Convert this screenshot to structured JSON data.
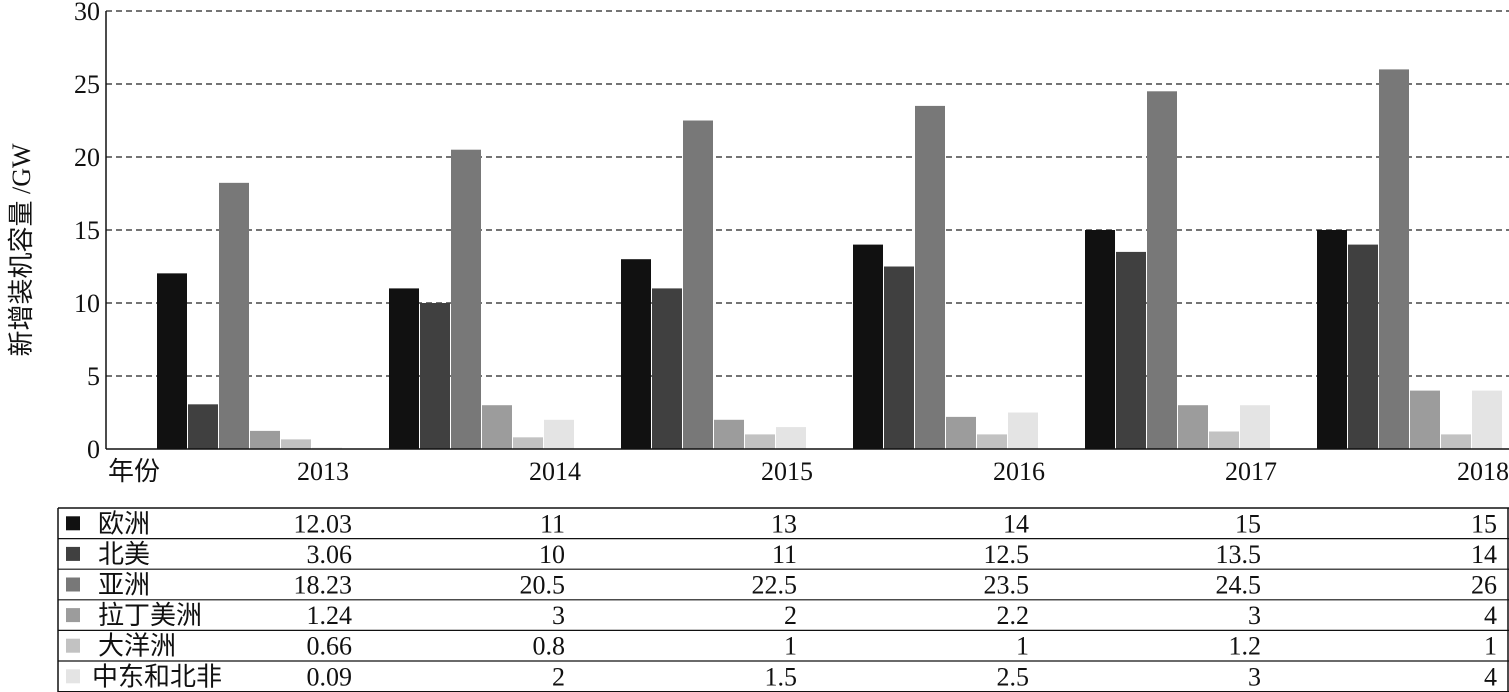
{
  "chart_data": {
    "type": "bar",
    "ylabel": "新增装机容量 /GW",
    "xlabel": "年份",
    "ylim": [
      0,
      30
    ],
    "yticks": [
      0,
      5,
      10,
      15,
      20,
      25,
      30
    ],
    "grid": true,
    "legend": "data-table-below",
    "categories": [
      "2013",
      "2014",
      "2015",
      "2016",
      "2017",
      "2018"
    ],
    "series": [
      {
        "name": "欧洲",
        "color": "#111111",
        "values": [
          12.03,
          11,
          13,
          14,
          15,
          15
        ],
        "labels": [
          "12.03",
          "11",
          "13",
          "14",
          "15",
          "15"
        ]
      },
      {
        "name": "北美",
        "color": "#404040",
        "values": [
          3.06,
          10,
          11,
          12.5,
          13.5,
          14
        ],
        "labels": [
          "3.06",
          "10",
          "11",
          "12.5",
          "13.5",
          "14"
        ]
      },
      {
        "name": "亚洲",
        "color": "#787878",
        "values": [
          18.23,
          20.5,
          22.5,
          23.5,
          24.5,
          26
        ],
        "labels": [
          "18.23",
          "20.5",
          "22.5",
          "23.5",
          "24.5",
          "26"
        ]
      },
      {
        "name": "拉丁美洲",
        "color": "#9c9c9c",
        "values": [
          1.24,
          3,
          2,
          2.2,
          3,
          4
        ],
        "labels": [
          "1.24",
          "3",
          "2",
          "2.2",
          "3",
          "4"
        ]
      },
      {
        "name": "大洋洲",
        "color": "#c2c2c2",
        "values": [
          0.66,
          0.8,
          1,
          1,
          1.2,
          1
        ],
        "labels": [
          "0.66",
          "0.8",
          "1",
          "1",
          "1.2",
          "1"
        ]
      },
      {
        "name": "中东和北非",
        "color": "#e4e4e4",
        "values": [
          0.09,
          2,
          1.5,
          2.5,
          3,
          4
        ],
        "labels": [
          "0.09",
          "2",
          "1.5",
          "2.5",
          "3",
          "4"
        ]
      }
    ]
  }
}
